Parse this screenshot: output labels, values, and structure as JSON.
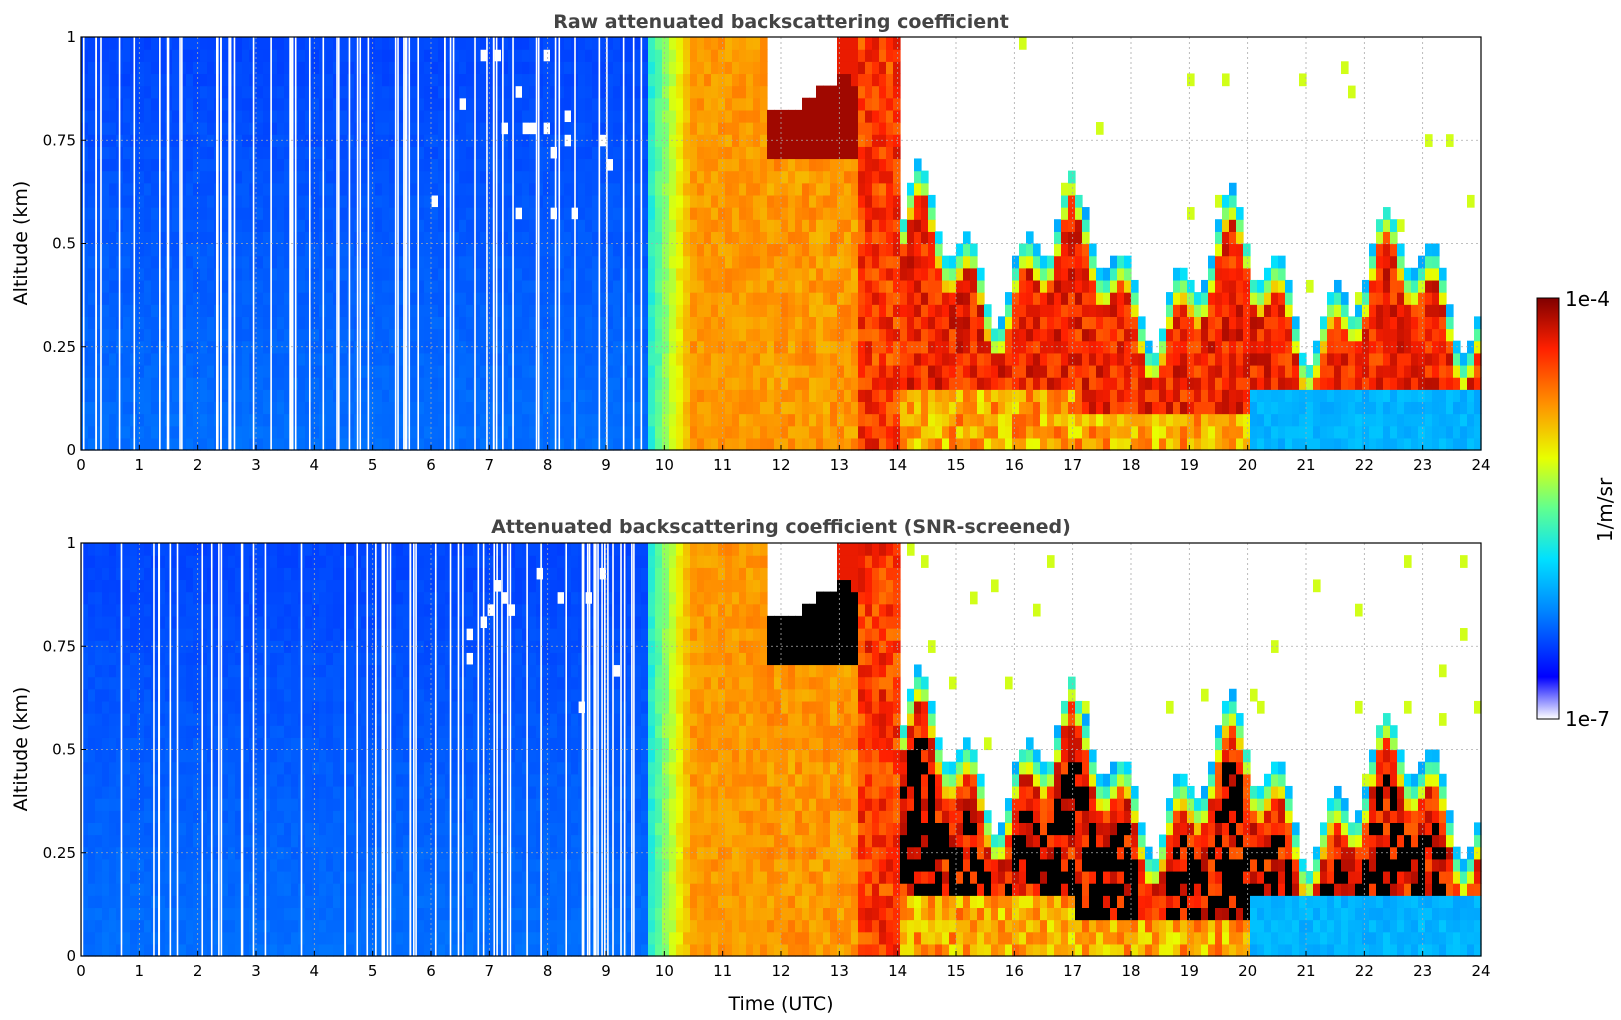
{
  "chart_data": [
    {
      "type": "heatmap",
      "title": "Raw attenuated backscattering coefficient",
      "xlabel": "",
      "ylabel": "Altitude (km)",
      "xlim": [
        0,
        24
      ],
      "ylim": [
        0,
        1
      ],
      "x_ticks": [
        0,
        1,
        2,
        3,
        4,
        5,
        6,
        7,
        8,
        9,
        10,
        11,
        12,
        13,
        14,
        15,
        16,
        17,
        18,
        19,
        20,
        21,
        22,
        23,
        24
      ],
      "y_ticks": [
        0,
        0.25,
        0.5,
        0.75,
        1
      ],
      "y_tick_labels": [
        "0",
        "0.25",
        "0.5",
        "0.75",
        "1"
      ],
      "grid": true,
      "segments": [
        {
          "t0": 0,
          "t1": 9.7,
          "regime": "low clear-air signal (blue), sparse data gaps"
        },
        {
          "t0": 9.7,
          "t1": 10.4,
          "regime": "transition cyan-green-yellow"
        },
        {
          "t0": 10.4,
          "t1": 11.8,
          "regime": "high orange fog/haze through full column"
        },
        {
          "t0": 11.8,
          "t1": 13.3,
          "regime": "orange below, cloud layer ~0.72-0.85 km (dark red)"
        },
        {
          "t0": 13.3,
          "t1": 14.0,
          "regime": "dark red/orange full column"
        },
        {
          "t0": 14.0,
          "t1": 17.0,
          "regime": "boundary layer ~0.15-0.45 km (red), clear above"
        },
        {
          "t0": 17.0,
          "t1": 20.0,
          "regime": "boundary layer ~0.1-0.4 km (dark red), clear above"
        },
        {
          "t0": 20.0,
          "t1": 24.0,
          "regime": "broken layer ~0.15-0.35 km, light blue below, scattered clouds above"
        }
      ]
    },
    {
      "type": "heatmap",
      "title": "Attenuated backscattering coefficient (SNR-screened)",
      "xlabel": "Time (UTC)",
      "ylabel": "Altitude (km)",
      "xlim": [
        0,
        24
      ],
      "ylim": [
        0,
        1
      ],
      "x_ticks": [
        0,
        1,
        2,
        3,
        4,
        5,
        6,
        7,
        8,
        9,
        10,
        11,
        12,
        13,
        14,
        15,
        16,
        17,
        18,
        19,
        20,
        21,
        22,
        23,
        24
      ],
      "y_ticks": [
        0,
        0.25,
        0.5,
        0.75,
        1
      ],
      "y_tick_labels": [
        "0",
        "0.25",
        "0.5",
        "0.75",
        "1"
      ],
      "grid": true,
      "screened_color": "#000000"
    }
  ],
  "colorbar": {
    "max_label": "1e-4",
    "min_label": "1e-7",
    "label": "1/m/sr",
    "scale": "log",
    "range": [
      1e-07,
      0.0001
    ],
    "colors": [
      "#ffffff",
      "#0000ff",
      "#0080ff",
      "#00e0ff",
      "#60ff90",
      "#e8ff00",
      "#ff9000",
      "#ff2000",
      "#800000"
    ]
  }
}
